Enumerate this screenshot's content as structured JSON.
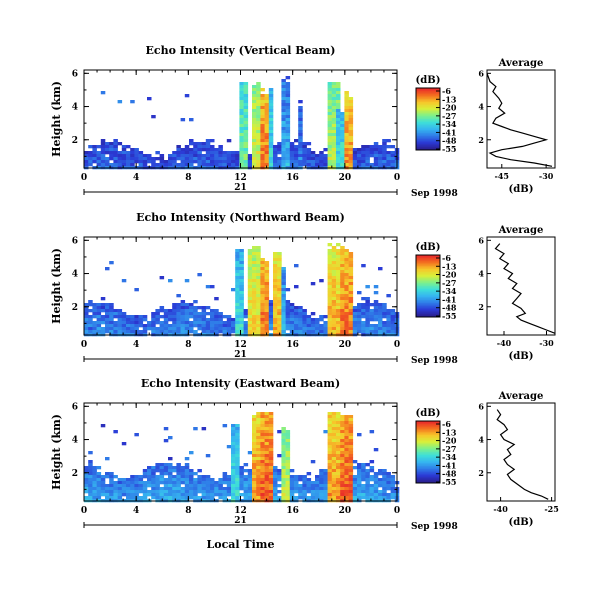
{
  "footer_xlabel": "Local Time",
  "scale": {
    "cmin": -55,
    "cmax": -6,
    "stops": [
      "#2a1f8f",
      "#2b3ad6",
      "#2f7de8",
      "#36b6f0",
      "#3fe0d8",
      "#7ef08a",
      "#d8ef3a",
      "#f7c62a",
      "#f4701f",
      "#e82a2a"
    ]
  },
  "panels": [
    {
      "title": "Echo Intensity (Vertical Beam)",
      "ylabel": "Height (km)",
      "yticks": [
        "6",
        "4",
        "2"
      ],
      "xticks": [
        "0",
        "4",
        "8",
        "12",
        "16",
        "20",
        "0"
      ],
      "day": "21",
      "month": "Sep 1998",
      "colorbar": {
        "unit": "(dB)",
        "ticks": [
          "-6",
          "-13",
          "-20",
          "-27",
          "-34",
          "-41",
          "-48",
          "-55"
        ]
      },
      "profile": {
        "title": "Average",
        "xlabel": "(dB)",
        "xticks": [
          "-45",
          "-30"
        ],
        "yticks": [
          "6",
          "4",
          "2"
        ]
      }
    },
    {
      "title": "Echo Intensity (Northward Beam)",
      "ylabel": "Height (km)",
      "yticks": [
        "6",
        "4",
        "2"
      ],
      "xticks": [
        "0",
        "4",
        "8",
        "12",
        "16",
        "20",
        "0"
      ],
      "day": "21",
      "month": "Sep 1998",
      "colorbar": {
        "unit": "(dB)",
        "ticks": [
          "-6",
          "-13",
          "-20",
          "-27",
          "-34",
          "-41",
          "-48",
          "-55"
        ]
      },
      "profile": {
        "title": "Average",
        "xlabel": "(dB)",
        "xticks": [
          "-40",
          "-30"
        ],
        "yticks": [
          "6",
          "4",
          "2"
        ]
      }
    },
    {
      "title": "Echo Intensity (Eastward Beam)",
      "ylabel": "Height (km)",
      "yticks": [
        "6",
        "4",
        "2"
      ],
      "xticks": [
        "0",
        "4",
        "8",
        "12",
        "16",
        "20",
        "0"
      ],
      "day": "21",
      "month": "Sep 1998",
      "colorbar": {
        "unit": "(dB)",
        "ticks": [
          "-6",
          "-13",
          "-20",
          "-27",
          "-34",
          "-41",
          "-48",
          "-55"
        ]
      },
      "profile": {
        "title": "Average",
        "xlabel": "(dB)",
        "xticks": [
          "-40",
          "-25"
        ],
        "yticks": [
          "6",
          "4",
          "2"
        ]
      }
    }
  ],
  "chart_data": [
    {
      "type": "heatmap",
      "title": "Echo Intensity (Vertical Beam)",
      "xlabel": "",
      "ylabel": "Height (km)",
      "xlim": [
        0,
        24
      ],
      "ylim": [
        0.3,
        6.2
      ],
      "unit": "dB",
      "bg_layer": {
        "top_km": 1.6,
        "value": -50
      },
      "convective_bands": [
        {
          "x0": 11.7,
          "x1": 12.2,
          "top": 5.8,
          "value": -25
        },
        {
          "x0": 12.8,
          "x1": 13.4,
          "top": 5.6,
          "value": -18
        },
        {
          "x0": 13.4,
          "x1": 14.0,
          "top": 5.2,
          "value": -8
        },
        {
          "x0": 14.0,
          "x1": 14.4,
          "top": 5.5,
          "value": -30
        },
        {
          "x0": 15.1,
          "x1": 15.4,
          "top": 5.9,
          "value": -35
        },
        {
          "x0": 16.2,
          "x1": 16.5,
          "top": 4.5,
          "value": -40
        },
        {
          "x0": 18.7,
          "x1": 19.4,
          "top": 5.8,
          "value": -20
        },
        {
          "x0": 19.4,
          "x1": 19.7,
          "top": 4.0,
          "value": -30
        },
        {
          "x0": 20.0,
          "x1": 20.4,
          "top": 5.0,
          "value": -10
        }
      ],
      "profile": {
        "type": "line",
        "xlabel": "(dB)",
        "xlim": [
          -50,
          -27
        ],
        "ylim": [
          0.3,
          6.2
        ],
        "x": [
          -50,
          -49,
          -47,
          -48,
          -46,
          -45,
          -46,
          -44,
          -47,
          -48,
          -45,
          -42,
          -38,
          -34,
          -30,
          -34,
          -38,
          -45,
          -49,
          -47,
          -42,
          -34,
          -28
        ],
        "y": [
          6.0,
          5.5,
          5.2,
          4.9,
          4.5,
          4.2,
          3.9,
          3.6,
          3.3,
          3.0,
          2.8,
          2.6,
          2.4,
          2.2,
          2.0,
          1.8,
          1.6,
          1.4,
          1.2,
          1.0,
          0.8,
          0.6,
          0.4
        ]
      }
    },
    {
      "type": "heatmap",
      "title": "Echo Intensity (Northward Beam)",
      "xlabel": "",
      "ylabel": "Height (km)",
      "xlim": [
        0,
        24
      ],
      "ylim": [
        0.3,
        6.2
      ],
      "unit": "dB",
      "bg_layer": {
        "top_km": 2.0,
        "value": -48
      },
      "convective_bands": [
        {
          "x0": 11.5,
          "x1": 11.9,
          "top": 5.6,
          "value": -30
        },
        {
          "x0": 12.6,
          "x1": 13.2,
          "top": 5.8,
          "value": -15
        },
        {
          "x0": 13.4,
          "x1": 13.9,
          "top": 5.2,
          "value": -8
        },
        {
          "x0": 14.3,
          "x1": 14.8,
          "top": 5.5,
          "value": -12
        },
        {
          "x0": 15.0,
          "x1": 15.3,
          "top": 4.8,
          "value": -35
        },
        {
          "x0": 18.6,
          "x1": 19.3,
          "top": 6.0,
          "value": -12
        },
        {
          "x0": 19.7,
          "x1": 20.3,
          "top": 5.8,
          "value": -8
        }
      ],
      "profile": {
        "type": "line",
        "xlabel": "(dB)",
        "xlim": [
          -44,
          -28
        ],
        "ylim": [
          0.3,
          6.2
        ],
        "x": [
          -41,
          -42,
          -40,
          -41,
          -39,
          -40,
          -38,
          -39,
          -37,
          -38,
          -36,
          -37,
          -38,
          -36,
          -35,
          -37,
          -36,
          -34,
          -32,
          -30,
          -28
        ],
        "y": [
          5.8,
          5.5,
          5.2,
          4.9,
          4.6,
          4.3,
          4.0,
          3.7,
          3.4,
          3.1,
          2.8,
          2.5,
          2.2,
          1.9,
          1.6,
          1.4,
          1.2,
          1.0,
          0.8,
          0.6,
          0.4
        ]
      }
    },
    {
      "type": "heatmap",
      "title": "Echo Intensity (Eastward Beam)",
      "xlabel": "Local Time",
      "ylabel": "Height (km)",
      "xlim": [
        0,
        24
      ],
      "ylim": [
        0.3,
        6.2
      ],
      "unit": "dB",
      "bg_layer": {
        "top_km": 2.3,
        "value": -46
      },
      "convective_bands": [
        {
          "x0": 11.3,
          "x1": 11.8,
          "top": 5.2,
          "value": -30
        },
        {
          "x0": 12.8,
          "x1": 13.4,
          "top": 5.8,
          "value": -10
        },
        {
          "x0": 13.4,
          "x1": 14.2,
          "top": 5.9,
          "value": -6
        },
        {
          "x0": 15.0,
          "x1": 15.5,
          "top": 5.0,
          "value": -20
        },
        {
          "x0": 18.6,
          "x1": 19.3,
          "top": 6.0,
          "value": -10
        },
        {
          "x0": 19.6,
          "x1": 20.3,
          "top": 5.7,
          "value": -6
        }
      ],
      "profile": {
        "type": "line",
        "xlabel": "(dB)",
        "xlim": [
          -44,
          -24
        ],
        "ylim": [
          0.3,
          6.2
        ],
        "x": [
          -41,
          -40,
          -41,
          -39,
          -38,
          -40,
          -39,
          -36,
          -38,
          -37,
          -39,
          -38,
          -36,
          -38,
          -37,
          -35,
          -33,
          -31,
          -28,
          -26
        ],
        "y": [
          5.8,
          5.5,
          5.2,
          4.9,
          4.6,
          4.3,
          4.0,
          3.7,
          3.4,
          3.1,
          2.8,
          2.5,
          2.2,
          1.9,
          1.6,
          1.3,
          1.0,
          0.8,
          0.6,
          0.4
        ]
      }
    }
  ]
}
